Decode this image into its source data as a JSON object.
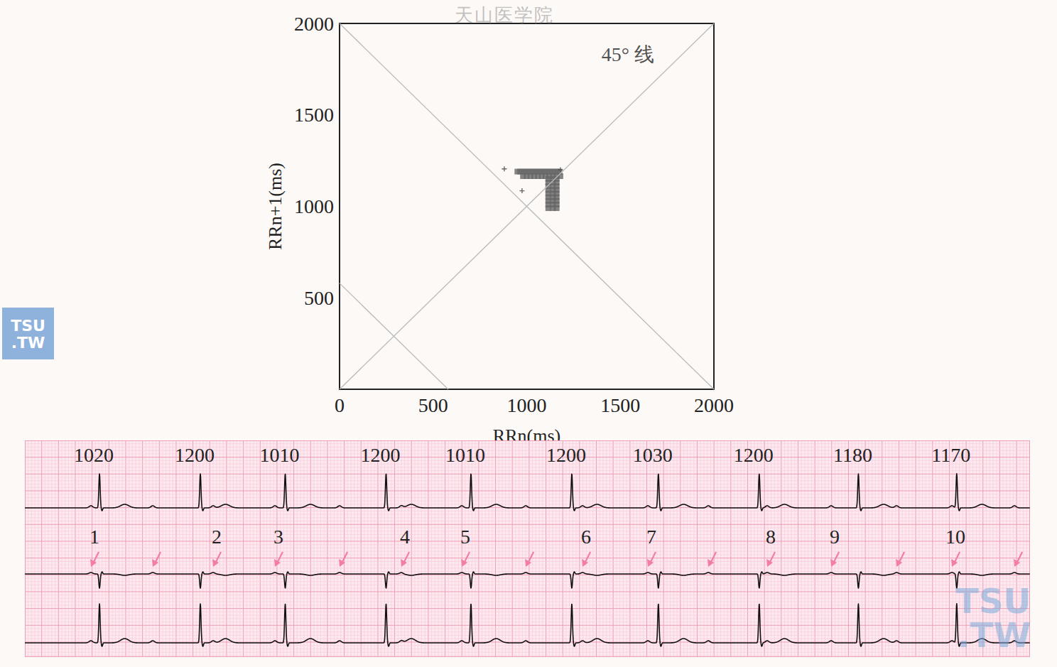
{
  "chart_data": {
    "type": "scatter",
    "x_label": "RRn(ms)",
    "y_label": "RRn+1(ms)",
    "xlim": [
      0,
      2000
    ],
    "ylim": [
      0,
      2000
    ],
    "xticks": [
      0,
      500,
      1000,
      1500,
      2000
    ],
    "yticks": [
      500,
      1000,
      1500,
      2000
    ],
    "grid": false,
    "series": [
      {
        "color": "#666666",
        "marker": "square",
        "x": [
          950,
          965,
          980,
          995,
          1010,
          1025,
          1040,
          1055,
          1070,
          1085,
          1100,
          1115,
          1130,
          1145,
          1160,
          1175,
          980,
          1000,
          1020,
          1040,
          1060,
          1080,
          1100,
          1120,
          1140,
          1160,
          1180,
          1115,
          1115,
          1115,
          1115,
          1115,
          1115,
          1115,
          1115,
          1115,
          1140,
          1140,
          1140,
          1140,
          1140,
          1140,
          1140,
          1140,
          1140,
          1160,
          1160,
          1160,
          1160,
          1160,
          1160,
          1160,
          1160,
          1160
        ],
        "values": [
          1190,
          1190,
          1190,
          1190,
          1190,
          1190,
          1190,
          1190,
          1190,
          1190,
          1190,
          1190,
          1190,
          1190,
          1190,
          1190,
          1165,
          1165,
          1165,
          1165,
          1165,
          1165,
          1165,
          1165,
          1165,
          1165,
          1165,
          990,
          1010,
          1030,
          1050,
          1070,
          1090,
          1110,
          1130,
          1150,
          990,
          1010,
          1030,
          1050,
          1070,
          1090,
          1110,
          1130,
          1150,
          990,
          1010,
          1030,
          1050,
          1070,
          1090,
          1110,
          1130,
          1150
        ]
      },
      {
        "color": "#444444",
        "marker": "plus",
        "x": [
          880,
          975,
          1180
        ],
        "values": [
          1205,
          1085,
          1200
        ]
      }
    ],
    "reference_lines": [
      {
        "x": [
          0,
          2000
        ],
        "values": [
          0,
          2000
        ],
        "color": "#bbbbbb"
      },
      {
        "x": [
          0,
          2000
        ],
        "values": [
          2000,
          0
        ],
        "color": "#bbbbbb"
      },
      {
        "x": [
          0,
          580
        ],
        "values": [
          580,
          0
        ],
        "color": "#bbbbbb"
      }
    ],
    "annotations": [
      {
        "text": "45° 线",
        "x": 1540,
        "y": 1830
      }
    ]
  },
  "ecg": {
    "rr_intervals_ms": [
      1020,
      1200,
      1010,
      1200,
      1010,
      1200,
      1030,
      1200,
      1180,
      1170
    ],
    "first_beat_ms": 888,
    "duration_ms": 11960,
    "p_waves": [
      {
        "t": 786,
        "label": "1"
      },
      {
        "t": 1522
      },
      {
        "t": 2240,
        "label": "2"
      },
      {
        "t": 2975,
        "label": "3"
      },
      {
        "t": 3745
      },
      {
        "t": 4480,
        "label": "4"
      },
      {
        "t": 5199,
        "label": "5"
      },
      {
        "t": 5960
      },
      {
        "t": 6636,
        "label": "6"
      },
      {
        "t": 7413,
        "label": "7"
      },
      {
        "t": 8132
      },
      {
        "t": 8833,
        "label": "8"
      },
      {
        "t": 9594,
        "label": "9"
      },
      {
        "t": 10372
      },
      {
        "t": 11031,
        "label": "10"
      },
      {
        "t": 11775
      }
    ]
  },
  "watermark": "天山医学院",
  "logo": [
    "TSU",
    ".TW"
  ]
}
